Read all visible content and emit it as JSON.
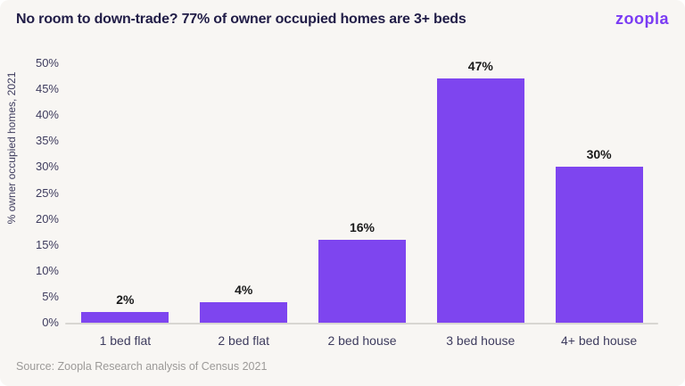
{
  "header": {
    "title": "No room to down-trade? 77% of owner occupied homes are 3+ beds",
    "logo_text": "zoopla"
  },
  "chart_data": {
    "type": "bar",
    "title": "No room to down-trade? 77% of owner occupied homes are 3+ beds",
    "categories": [
      "1 bed flat",
      "2 bed flat",
      "2 bed house",
      "3 bed house",
      "4+ bed house"
    ],
    "values": [
      2,
      4,
      16,
      47,
      30
    ],
    "value_labels": [
      "2%",
      "4%",
      "16%",
      "47%",
      "30%"
    ],
    "ylabel": "% owner occupied homes, 2021",
    "xlabel": "",
    "ylim": [
      0,
      50
    ],
    "ytick_step": 5,
    "ytick_suffix": "%",
    "grid": false,
    "legend": "none",
    "bar_color": "#7E45EF"
  },
  "footer": {
    "source": "Source: Zoopla Research analysis of Census 2021"
  },
  "colors": {
    "background": "#F8F6F3",
    "bar": "#7E45EF",
    "title_text": "#211D47",
    "axis_text": "#3E3C5E",
    "value_label": "#1A1A1A",
    "logo": "#7A3BF3",
    "source_text": "#9C9A98",
    "axis_line": "#D8D6D2"
  }
}
